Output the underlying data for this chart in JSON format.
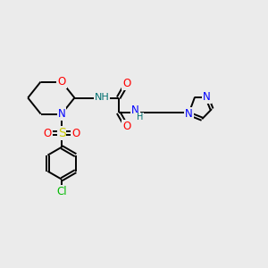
{
  "bg_color": "#ebebeb",
  "bond_color": "#000000",
  "bond_width": 1.4,
  "atom_colors": {
    "O": "#ff0000",
    "N": "#0000ff",
    "S": "#cccc00",
    "Cl": "#00bb00",
    "H": "#007070",
    "C": "#000000"
  },
  "font_size": 8.5,
  "figsize": [
    3.0,
    3.0
  ],
  "dpi": 100
}
